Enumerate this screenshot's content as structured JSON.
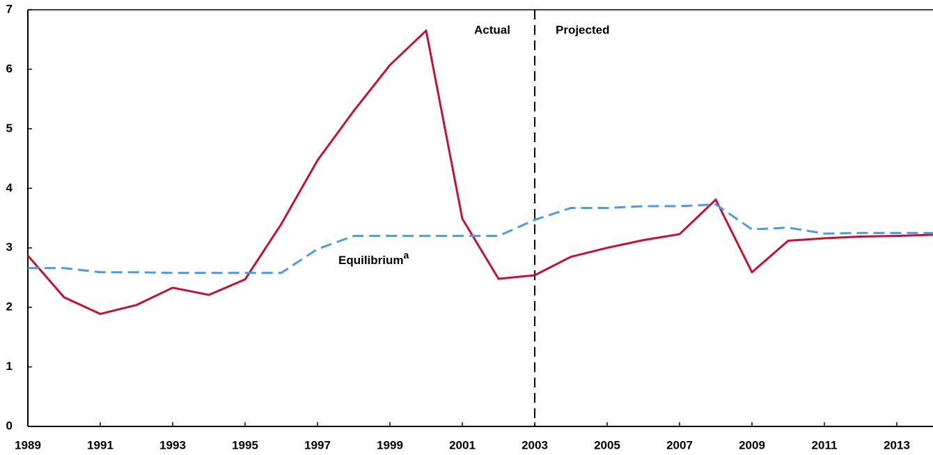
{
  "chart_data": {
    "type": "line",
    "x": [
      1989,
      1990,
      1991,
      1992,
      1993,
      1994,
      1995,
      1996,
      1997,
      1998,
      1999,
      2000,
      2001,
      2002,
      2003,
      2004,
      2005,
      2006,
      2007,
      2008,
      2009,
      2010,
      2011,
      2012,
      2013,
      2014
    ],
    "series": [
      {
        "color": "#c8102e",
        "dash": "solid",
        "values": [
          2.87,
          2.17,
          1.89,
          2.04,
          2.33,
          2.21,
          2.47,
          3.4,
          4.47,
          5.3,
          6.07,
          6.65,
          3.49,
          2.48,
          2.54,
          2.85,
          3.0,
          3.13,
          3.23,
          3.81,
          2.59,
          3.12,
          3.16,
          3.19,
          3.2,
          3.22
        ]
      },
      {
        "name": "Equilibrium",
        "footnote_marker": "a",
        "color": "#4a9be8",
        "dash": "dashed",
        "values": [
          2.66,
          2.66,
          2.59,
          2.59,
          2.58,
          2.58,
          2.58,
          2.58,
          2.98,
          3.2,
          3.2,
          3.2,
          3.2,
          3.2,
          3.47,
          3.67,
          3.67,
          3.7,
          3.7,
          3.73,
          3.31,
          3.34,
          3.24,
          3.25,
          3.25,
          3.25
        ]
      }
    ],
    "divider": {
      "x": 2003,
      "left_label": "Actual",
      "right_label": "Projected"
    },
    "xlim": [
      1989,
      2014
    ],
    "xticks": [
      1989,
      1991,
      1993,
      1995,
      1997,
      1999,
      2001,
      2003,
      2005,
      2007,
      2009,
      2011,
      2013
    ],
    "ylim": [
      0,
      7
    ],
    "yticks": [
      0,
      1,
      2,
      3,
      4,
      5,
      6,
      7
    ]
  }
}
